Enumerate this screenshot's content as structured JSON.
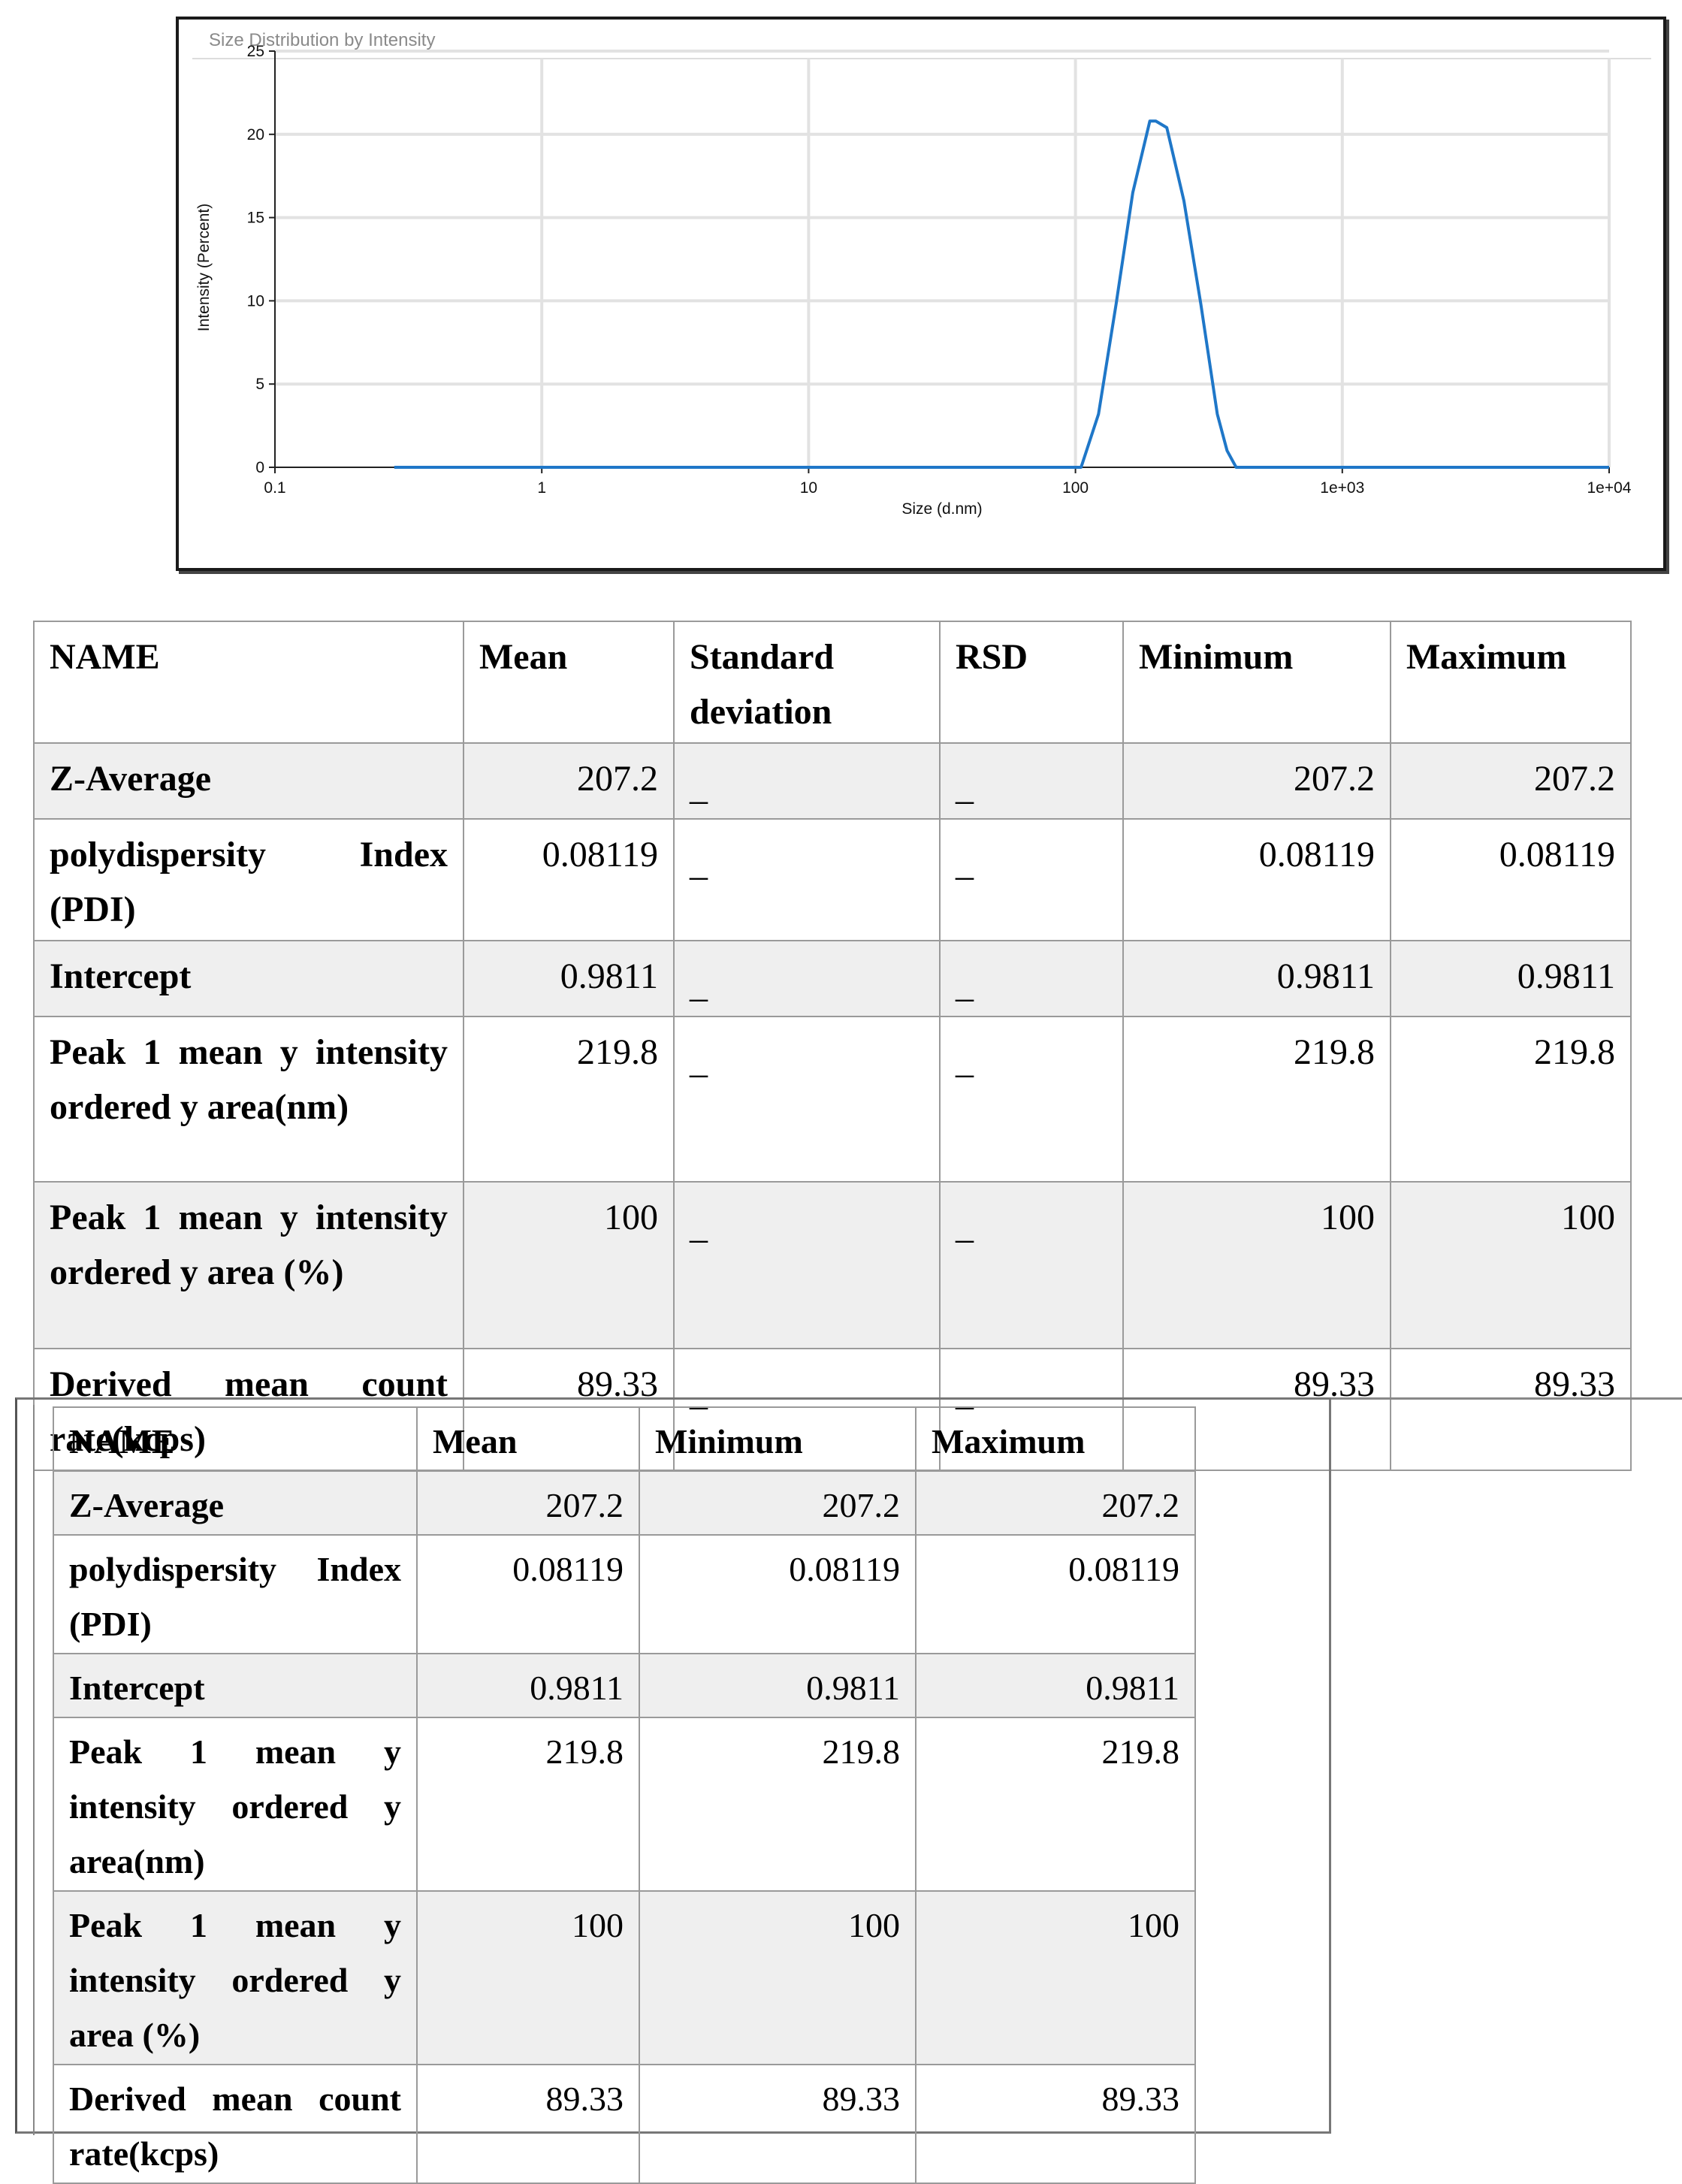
{
  "chart": {
    "title": "Size Distribution by Intensity",
    "y_ticks": [
      "0",
      "5",
      "10",
      "15",
      "20",
      "25"
    ],
    "x_ticks": [
      "0.1",
      "1",
      "10",
      "100",
      "1e+03",
      "1e+04"
    ],
    "line_color": "#1f77c8"
  },
  "chart_data": {
    "type": "line",
    "title": "Size Distribution by Intensity",
    "xlabel": "Size (d.nm)",
    "ylabel": "Intensity (Percent)",
    "x_scale": "log",
    "xlim": [
      0.1,
      10000
    ],
    "ylim": [
      0,
      25
    ],
    "grid": true,
    "series": [
      {
        "x": [
          0.28,
          10,
          100,
          105,
          122,
          142,
          164,
          190,
          200,
          220,
          255,
          295,
          340,
          370,
          400,
          10000
        ],
        "y": [
          0,
          0,
          0,
          0,
          3.2,
          9.8,
          16.5,
          20.8,
          20.8,
          20.4,
          16.0,
          9.8,
          3.2,
          1.0,
          0,
          0
        ]
      }
    ]
  },
  "table1": {
    "headers": [
      "NAME",
      "Mean",
      "Standard deviation",
      "RSD",
      "Minimum",
      "Maximum"
    ],
    "rows": [
      {
        "name": "Z-Average",
        "mean": "207.2",
        "sd": "_",
        "rsd": "_",
        "min": "207.2",
        "max": "207.2"
      },
      {
        "name": "polydispersity Index (PDI)",
        "mean": "0.08119",
        "sd": "_",
        "rsd": "_",
        "min": "0.08119",
        "max": "0.08119"
      },
      {
        "name": "Intercept",
        "mean": "0.9811",
        "sd": "_",
        "rsd": "_",
        "min": "0.9811",
        "max": "0.9811"
      },
      {
        "name": "Peak 1 mean y intensity ordered y area(nm)",
        "mean": "219.8",
        "sd": "_",
        "rsd": "_",
        "min": "219.8",
        "max": "219.8"
      },
      {
        "name": "Peak 1 mean y intensity ordered y area (%)",
        "mean": "100",
        "sd": "_",
        "rsd": "_",
        "min": "100",
        "max": "100"
      },
      {
        "name": "Derived mean count rate(kcps)",
        "mean": "89.33",
        "sd": "_",
        "rsd": "_",
        "min": "89.33",
        "max": "89.33"
      }
    ]
  },
  "table2": {
    "headers": [
      "NAME",
      "Mean",
      "Minimum",
      "Maximum"
    ],
    "rows": [
      {
        "name": "Z-Average",
        "mean": "207.2",
        "min": "207.2",
        "max": "207.2"
      },
      {
        "name": "polydispersity Index (PDI)",
        "mean": "0.08119",
        "min": "0.08119",
        "max": "0.08119"
      },
      {
        "name": "Intercept",
        "mean": "0.9811",
        "min": "0.9811",
        "max": "0.9811"
      },
      {
        "name": "Peak 1 mean y intensity ordered y area(nm)",
        "mean": "219.8",
        "min": "219.8",
        "max": "219.8"
      },
      {
        "name": "Peak 1 mean y intensity ordered y area (%)",
        "mean": "100",
        "min": "100",
        "max": "100"
      },
      {
        "name": "Derived mean count rate(kcps)",
        "mean": "89.33",
        "min": "89.33",
        "max": "89.33"
      }
    ]
  }
}
